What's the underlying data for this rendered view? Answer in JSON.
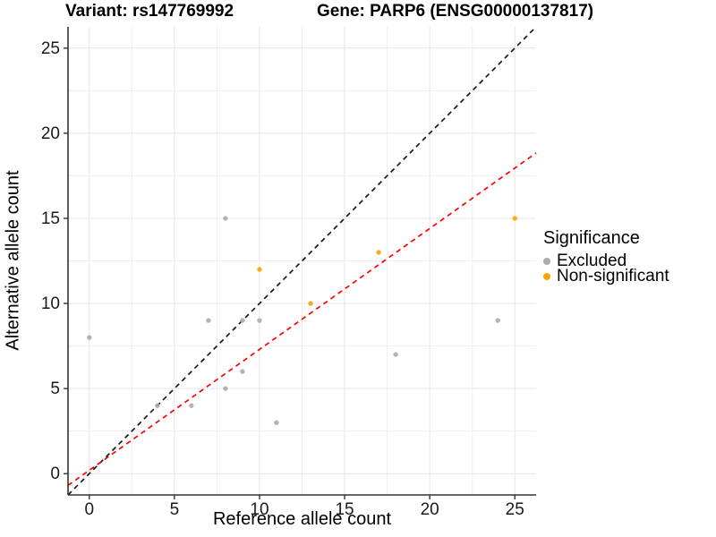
{
  "header": {
    "variant_title": "Variant: rs147769992",
    "gene_title": "Gene: PARP6 (ENSG00000137817)"
  },
  "axes": {
    "x_label": "Reference allele count",
    "y_label": "Alternative allele count"
  },
  "legend": {
    "title": "Significance",
    "items": [
      {
        "label": "Excluded",
        "color": "#ACACAC"
      },
      {
        "label": "Non-significant",
        "color": "#FFA200"
      }
    ]
  },
  "colors": {
    "excluded_point": "#ACACAC",
    "non_significant_point": "#FFA200",
    "identity_line": "#1A1A1A",
    "fit_line": "#FF0000",
    "axis_line": "#333333",
    "tick_label": "#1A1A1A",
    "grid_major": "#E4E4E4",
    "grid_minor": "#EFEFEF"
  },
  "chart_data": {
    "type": "scatter",
    "title": "Variant: rs147769992   Gene: PARP6 (ENSG00000137817)",
    "xlabel": "Reference allele count",
    "ylabel": "Alternative allele count",
    "xlim": [
      -1.25,
      26.25
    ],
    "ylim": [
      -1.25,
      26.25
    ],
    "x_ticks": [
      0,
      5,
      10,
      15,
      20,
      25
    ],
    "y_ticks": [
      0,
      5,
      10,
      15,
      20,
      25
    ],
    "grid_interval": 2.5,
    "grid": true,
    "legend_position": "right",
    "series": [
      {
        "name": "Excluded",
        "color": "#ACACAC",
        "points": [
          [
            0,
            8
          ],
          [
            4,
            4
          ],
          [
            6,
            4
          ],
          [
            7,
            9
          ],
          [
            8,
            5
          ],
          [
            8,
            15
          ],
          [
            9,
            6
          ],
          [
            9,
            9
          ],
          [
            10,
            9
          ],
          [
            11,
            3
          ],
          [
            18,
            7
          ],
          [
            24,
            9
          ]
        ]
      },
      {
        "name": "Non-significant",
        "color": "#FFA200",
        "points": [
          [
            10,
            12
          ],
          [
            13,
            10
          ],
          [
            17,
            13
          ],
          [
            25,
            15
          ]
        ]
      }
    ],
    "lines": [
      {
        "name": "identity-line",
        "color": "#1A1A1A",
        "dashed": true,
        "slope": 1,
        "intercept": 0,
        "x1": -1.25,
        "y1": -1.25,
        "x2": 26.25,
        "y2": 26.25
      },
      {
        "name": "fit-line",
        "color": "#FF0000",
        "dashed": true,
        "slope": 0.71,
        "intercept": 0.2,
        "x1": -1.25,
        "y1": -0.69,
        "x2": 26.25,
        "y2": 18.84
      }
    ]
  }
}
